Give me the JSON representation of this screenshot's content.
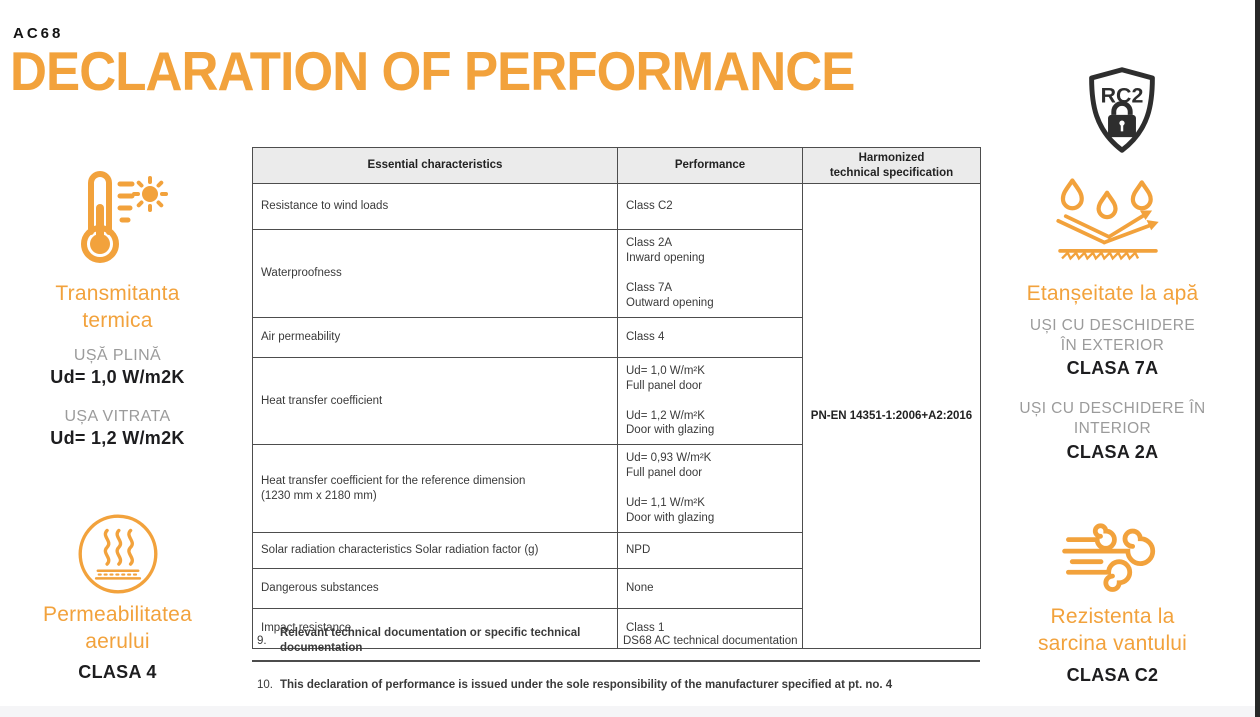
{
  "colors": {
    "accent": "#F2A23C",
    "ink": "#1D1D1F",
    "gray": "#9B9B9B",
    "table_border": "#4D4D4D",
    "table_header_bg": "#EBEBEB"
  },
  "header": {
    "code": "AC68",
    "title": "DECLARATION OF PERFORMANCE"
  },
  "table": {
    "columns": [
      "Essential characteristics",
      "Performance",
      "Harmonized\ntechnical specification"
    ],
    "harmonized_spec": "PN-EN 14351-1:2006+A2:2016",
    "rows": [
      {
        "characteristic": "Resistance to wind loads",
        "performance": [
          "Class C2"
        ]
      },
      {
        "characteristic": "Waterproofness",
        "performance": [
          "Class 2A",
          "Inward opening",
          "",
          "Class 7A",
          "Outward opening"
        ]
      },
      {
        "characteristic": "Air permeability",
        "performance": [
          "Class 4"
        ]
      },
      {
        "characteristic": "Heat transfer coefficient",
        "performance": [
          "Ud= 1,0 W/m²K",
          "Full panel door",
          "",
          "Ud= 1,2 W/m²K",
          "Door with glazing"
        ]
      },
      {
        "characteristic": "Heat transfer coefficient for the reference dimension\n(1230 mm x 2180 mm)",
        "performance": [
          "Ud= 0,93 W/m²K",
          "Full panel door",
          "",
          "Ud= 1,1 W/m²K",
          "Door with glazing"
        ]
      },
      {
        "characteristic": "Solar radiation characteristics Solar radiation factor (g)",
        "performance": [
          "NPD"
        ]
      },
      {
        "characteristic": "Dangerous substances",
        "performance": [
          "None"
        ]
      },
      {
        "characteristic": "Impact resistance",
        "performance": [
          "Class 1"
        ]
      }
    ]
  },
  "notes": [
    {
      "number": "9.",
      "label": "Relevant technical documentation or specific technical documentation",
      "value": "DS68 AC technical documentation"
    },
    {
      "number": "10.",
      "label": "This declaration of performance is issued under the sole responsibility of the manufacturer specified at pt. no. 4",
      "value": ""
    }
  ],
  "left_panel": {
    "thermal": {
      "icon": "thermometer-sun",
      "title": "Transmitanta\ntermica",
      "items": [
        {
          "label": "UȘĂ PLINĂ",
          "value": "Ud= 1,0 W/m2K"
        },
        {
          "label": "UȘA VITRATA",
          "value": "Ud= 1,2 W/m2K"
        }
      ]
    },
    "air": {
      "icon": "steam-circle",
      "title": "Permeabilitatea\naerului",
      "class_value": "CLASA 4"
    }
  },
  "right_panel": {
    "security_badge": "RC2",
    "water": {
      "icon": "water-drops",
      "title": "Etanșeitate la apă",
      "items": [
        {
          "label": "UȘI CU DESCHIDERE\nÎN EXTERIOR",
          "value": "CLASA 7A"
        },
        {
          "label": "UȘI CU DESCHIDERE ÎN\nINTERIOR",
          "value": "CLASA 2A"
        }
      ]
    },
    "wind": {
      "icon": "wind-swirl",
      "title": "Rezistenta la\nsarcina vantului",
      "class_value": "CLASA C2"
    }
  }
}
